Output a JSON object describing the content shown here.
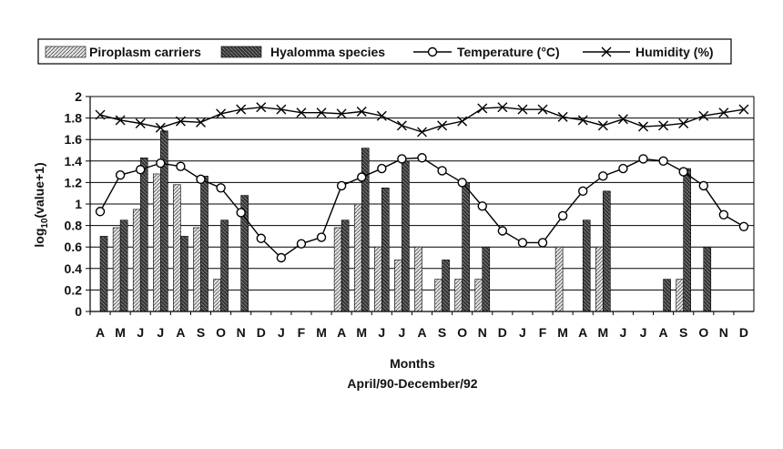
{
  "chart_data": {
    "type": "bar",
    "title": "",
    "xlabel": "Months",
    "xlabel2": "April/90-December/92",
    "ylabel_main": "log",
    "ylabel_sub": "10",
    "ylabel_rest": "(value+1)",
    "ylim": [
      0,
      2
    ],
    "yticks": [
      "0",
      "0.2",
      "0.4",
      "0.6",
      "0.8",
      "1",
      "1.2",
      "1.4",
      "1.6",
      "1.8",
      "2"
    ],
    "grid": true,
    "legend_position": "top",
    "categories": [
      "A",
      "M",
      "J",
      "J",
      "A",
      "S",
      "O",
      "N",
      "D",
      "J",
      "F",
      "M",
      "A",
      "M",
      "J",
      "J",
      "A",
      "S",
      "O",
      "N",
      "D",
      "J",
      "F",
      "M",
      "A",
      "M",
      "J",
      "J",
      "A",
      "S",
      "O",
      "N",
      "D"
    ],
    "series": [
      {
        "name": "Piroplasm carriers",
        "kind": "bar",
        "pattern": "light-hatch",
        "values": [
          0,
          0.78,
          0.95,
          1.28,
          1.18,
          0.78,
          0.3,
          0,
          null,
          null,
          null,
          null,
          0.78,
          1.0,
          0.6,
          0.48,
          0.6,
          0.3,
          0.3,
          0.3,
          null,
          null,
          null,
          0.6,
          0,
          0.6,
          0,
          null,
          0,
          0.3,
          0,
          null,
          null
        ]
      },
      {
        "name": "Hyalomma species",
        "kind": "bar",
        "pattern": "dark-hatch",
        "values": [
          0.7,
          0.85,
          1.43,
          1.68,
          0.7,
          1.26,
          0.85,
          1.08,
          null,
          null,
          null,
          null,
          0.85,
          1.52,
          1.15,
          1.4,
          0,
          0.48,
          1.2,
          0.6,
          null,
          null,
          null,
          0,
          0.85,
          1.12,
          0,
          null,
          0.3,
          1.33,
          0.6,
          null,
          null
        ]
      },
      {
        "name": "Temperature (°C)",
        "kind": "line",
        "marker": "circle",
        "values": [
          0.93,
          1.27,
          1.32,
          1.38,
          1.35,
          1.23,
          1.15,
          0.92,
          0.68,
          0.5,
          0.63,
          0.69,
          1.17,
          1.25,
          1.33,
          1.42,
          1.43,
          1.31,
          1.2,
          0.98,
          0.75,
          0.64,
          0.64,
          0.89,
          1.12,
          1.26,
          1.33,
          1.42,
          1.4,
          1.3,
          1.17,
          0.9,
          0.79
        ]
      },
      {
        "name": "Humidity (%)",
        "kind": "line",
        "marker": "x",
        "values": [
          1.83,
          1.78,
          1.75,
          1.71,
          1.77,
          1.76,
          1.84,
          1.88,
          1.9,
          1.88,
          1.85,
          1.85,
          1.84,
          1.86,
          1.82,
          1.73,
          1.67,
          1.73,
          1.77,
          1.89,
          1.9,
          1.88,
          1.88,
          1.81,
          1.78,
          1.73,
          1.79,
          1.72,
          1.73,
          1.75,
          1.82,
          1.85,
          1.88
        ]
      }
    ]
  }
}
